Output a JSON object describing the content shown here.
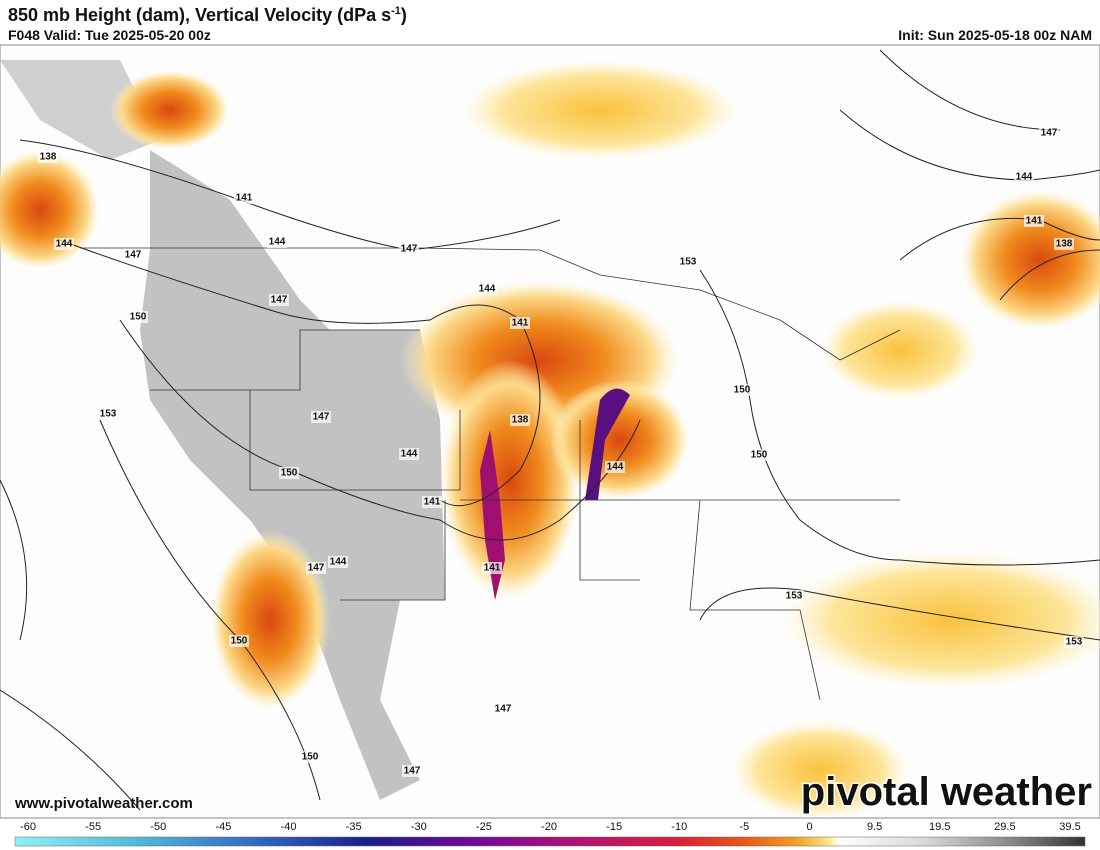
{
  "header": {
    "title": "850 mb Height (dam), Vertical Velocity (dPa s",
    "title_sup": "-1",
    "title_end": ")",
    "valid": "F048 Valid: Tue 2025-05-20 00z",
    "init": "Init: Sun 2025-05-18 00z NAM"
  },
  "contour_labels": [
    138,
    141,
    144,
    144,
    147,
    147,
    147,
    150,
    153,
    147,
    150,
    144,
    141,
    144,
    147,
    141,
    150,
    150,
    147,
    147,
    144,
    141,
    138,
    144,
    153,
    150,
    150,
    153,
    153,
    147,
    144,
    141,
    138
  ],
  "footer": {
    "website": "www.pivotalweather.com",
    "logo": "pivotal weather"
  },
  "colorbar": {
    "ticks": [
      -60,
      -55,
      -50,
      -45,
      -40,
      -35,
      -30,
      -25,
      -20,
      -15,
      -10,
      -5,
      0,
      9.5,
      19.5,
      29.5,
      39.5
    ]
  }
}
